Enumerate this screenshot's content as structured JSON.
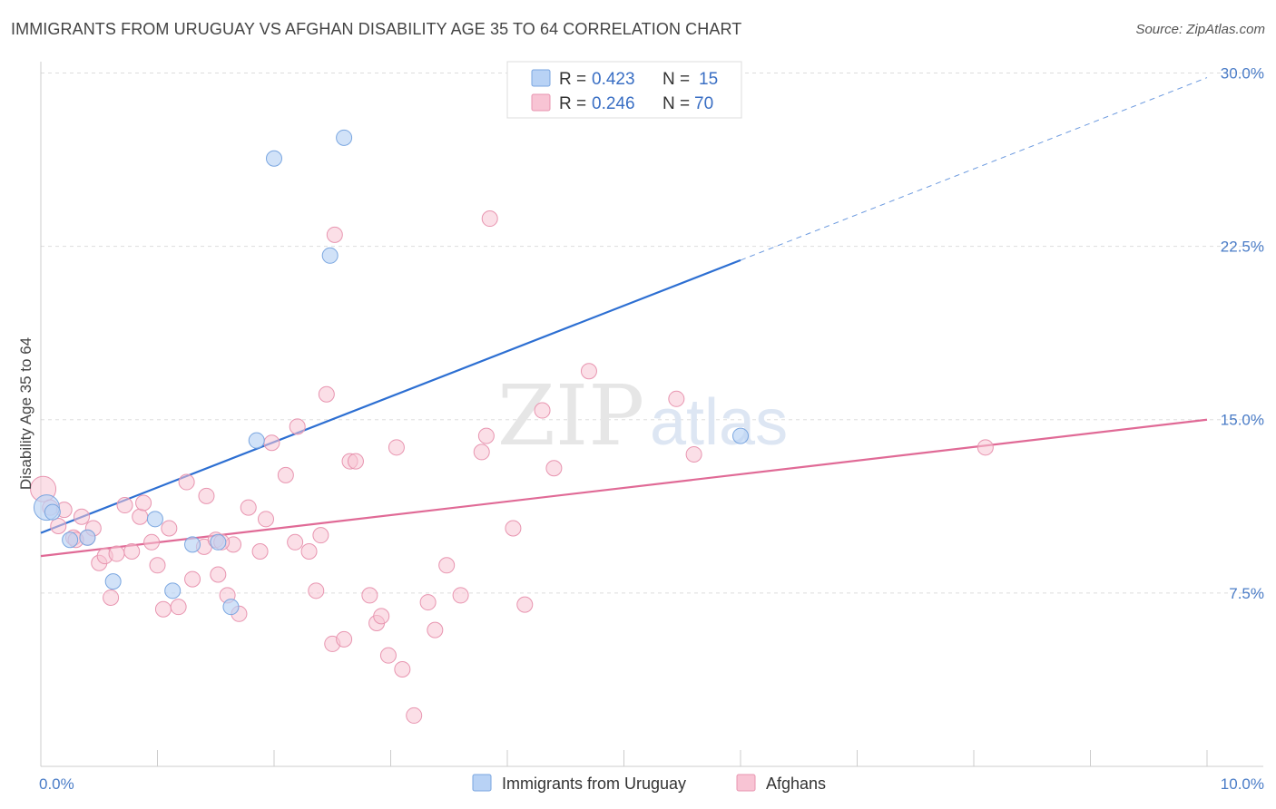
{
  "title": "IMMIGRANTS FROM URUGUAY VS AFGHAN DISABILITY AGE 35 TO 64 CORRELATION CHART",
  "source": "Source: ZipAtlas.com",
  "watermark": {
    "zip": "ZIP",
    "atlas": "atlas"
  },
  "colors": {
    "uruguay_fill": "#b8d2f5",
    "uruguay_stroke": "#7aa6e0",
    "uruguay_line": "#2d6fd2",
    "afghan_fill": "#f8c4d4",
    "afghan_stroke": "#e895b0",
    "afghan_line": "#e06a96",
    "tick": "#4a7cc7",
    "grid": "#dddddd"
  },
  "legend": {
    "rows": [
      {
        "r_label": "R = ",
        "r_value": "0.423",
        "n_label": "N = ",
        "n_value": "15"
      },
      {
        "r_label": "R = ",
        "r_value": "0.246",
        "n_label": "N = ",
        "n_value": "70"
      }
    ]
  },
  "chart_data": {
    "type": "scatter",
    "title": "IMMIGRANTS FROM URUGUAY VS AFGHAN DISABILITY AGE 35 TO 64 CORRELATION CHART",
    "xlabel": "",
    "ylabel": "Disability Age 35 to 64",
    "xlim": [
      0,
      10
    ],
    "ylim": [
      0,
      31
    ],
    "x_ticks": [
      0,
      10
    ],
    "x_tick_labels": [
      "0.0%",
      "10.0%"
    ],
    "y_ticks": [
      7.5,
      15,
      22.5,
      30
    ],
    "y_tick_labels": [
      "7.5%",
      "15.0%",
      "22.5%",
      "30.0%"
    ],
    "grid": true,
    "legend_position": "top-center",
    "series": [
      {
        "name": "Immigrants from Uruguay",
        "points": [
          [
            0.05,
            11.2
          ],
          [
            0.1,
            11.0
          ],
          [
            0.25,
            9.8
          ],
          [
            0.4,
            9.9
          ],
          [
            0.62,
            8.0
          ],
          [
            0.98,
            10.7
          ],
          [
            1.13,
            7.6
          ],
          [
            1.3,
            9.6
          ],
          [
            1.52,
            9.7
          ],
          [
            1.63,
            6.9
          ],
          [
            1.85,
            14.1
          ],
          [
            2.0,
            26.3
          ],
          [
            2.48,
            22.1
          ],
          [
            2.6,
            27.2
          ],
          [
            6.0,
            14.3
          ]
        ],
        "trend": {
          "x_start": 0.0,
          "y_start": 10.1,
          "x_solid_end": 6.0,
          "y_solid_end": 21.9,
          "x_end": 10.0,
          "y_end": 29.8
        }
      },
      {
        "name": "Afghans",
        "points": [
          [
            0.02,
            12.0
          ],
          [
            0.08,
            11.2
          ],
          [
            0.15,
            10.4
          ],
          [
            0.2,
            11.1
          ],
          [
            0.28,
            9.9
          ],
          [
            0.35,
            10.8
          ],
          [
            0.4,
            9.9
          ],
          [
            0.45,
            10.3
          ],
          [
            0.5,
            8.8
          ],
          [
            0.55,
            9.1
          ],
          [
            0.6,
            7.3
          ],
          [
            0.65,
            9.2
          ],
          [
            0.72,
            11.3
          ],
          [
            0.78,
            9.3
          ],
          [
            0.85,
            10.8
          ],
          [
            0.88,
            11.4
          ],
          [
            0.95,
            9.7
          ],
          [
            1.0,
            8.7
          ],
          [
            1.05,
            6.8
          ],
          [
            1.1,
            10.3
          ],
          [
            1.18,
            6.9
          ],
          [
            1.25,
            12.3
          ],
          [
            1.3,
            8.1
          ],
          [
            1.4,
            9.5
          ],
          [
            1.42,
            11.7
          ],
          [
            1.5,
            9.8
          ],
          [
            1.52,
            8.3
          ],
          [
            1.6,
            7.4
          ],
          [
            1.65,
            9.6
          ],
          [
            1.7,
            6.6
          ],
          [
            1.78,
            11.2
          ],
          [
            1.88,
            9.3
          ],
          [
            1.93,
            10.7
          ],
          [
            1.98,
            14.0
          ],
          [
            2.1,
            12.6
          ],
          [
            2.18,
            9.7
          ],
          [
            2.2,
            14.7
          ],
          [
            2.3,
            9.3
          ],
          [
            2.36,
            7.6
          ],
          [
            2.4,
            10.0
          ],
          [
            2.45,
            16.1
          ],
          [
            2.5,
            5.3
          ],
          [
            2.52,
            23.0
          ],
          [
            2.6,
            5.5
          ],
          [
            2.65,
            13.2
          ],
          [
            2.7,
            13.2
          ],
          [
            2.82,
            7.4
          ],
          [
            2.88,
            6.2
          ],
          [
            2.92,
            6.5
          ],
          [
            2.98,
            4.8
          ],
          [
            3.05,
            13.8
          ],
          [
            3.1,
            4.2
          ],
          [
            3.2,
            2.2
          ],
          [
            3.32,
            7.1
          ],
          [
            3.38,
            5.9
          ],
          [
            3.48,
            8.7
          ],
          [
            3.6,
            7.4
          ],
          [
            3.78,
            13.6
          ],
          [
            3.82,
            14.3
          ],
          [
            3.85,
            23.7
          ],
          [
            4.05,
            10.3
          ],
          [
            4.15,
            7.0
          ],
          [
            4.3,
            15.4
          ],
          [
            4.4,
            12.9
          ],
          [
            4.7,
            17.1
          ],
          [
            5.45,
            15.9
          ],
          [
            5.6,
            13.5
          ],
          [
            8.1,
            13.8
          ],
          [
            1.55,
            9.7
          ],
          [
            0.3,
            9.8
          ]
        ],
        "trend": {
          "x_start": 0.0,
          "y_start": 9.1,
          "x_end": 10.0,
          "y_end": 15.0
        }
      }
    ]
  }
}
